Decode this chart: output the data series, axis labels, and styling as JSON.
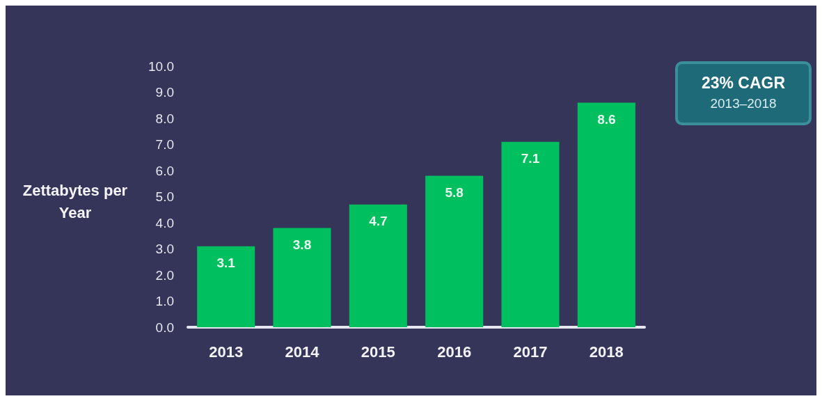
{
  "chart_data": {
    "type": "bar",
    "ylabel": "Zettabytes per Year",
    "categories": [
      "2013",
      "2014",
      "2015",
      "2016",
      "2017",
      "2018"
    ],
    "values": [
      3.1,
      3.8,
      4.7,
      5.8,
      7.1,
      8.6
    ],
    "color": "#00bf5f",
    "ylim": [
      0,
      10
    ],
    "yticks": [
      {
        "value": 0,
        "label": "0.0"
      },
      {
        "value": 1,
        "label": "1.0"
      },
      {
        "value": 2,
        "label": "2.0"
      },
      {
        "value": 3,
        "label": "3.0"
      },
      {
        "value": 4,
        "label": "4.0"
      },
      {
        "value": 5,
        "label": "5.0"
      },
      {
        "value": 6,
        "label": "6.0"
      },
      {
        "value": 7,
        "label": "7.0"
      },
      {
        "value": 8,
        "label": "8.0"
      },
      {
        "value": 9,
        "label": "9.0"
      },
      {
        "value": 10,
        "label": "10.0"
      }
    ],
    "data_labels": true,
    "grid": false,
    "annotations": [
      "23% CAGR",
      "2013–2018"
    ]
  }
}
